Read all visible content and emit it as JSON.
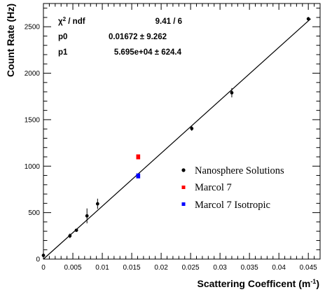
{
  "chart_data": {
    "type": "scatter",
    "xlabel": "Scattering Coefficent (m",
    "xlabel_sup": "-1",
    "xlabel_end": ")",
    "ylabel": "Count Rate (Hz)",
    "xlim": [
      0,
      0.047
    ],
    "ylim": [
      0,
      2750
    ],
    "x_ticks": [
      0,
      0.005,
      0.01,
      0.015,
      0.02,
      0.025,
      0.03,
      0.035,
      0.04,
      0.045
    ],
    "x_tick_labels": [
      "0",
      "0.005",
      "0.01",
      "0.015",
      "0.02",
      "0.025",
      "0.03",
      "0.035",
      "0.04",
      "0.045"
    ],
    "y_ticks": [
      0,
      500,
      1000,
      1500,
      2000,
      2500
    ],
    "y_tick_labels": [
      "0",
      "500",
      "1000",
      "1500",
      "2000",
      "2500"
    ],
    "grid": false,
    "legend_position": "right-middle",
    "series": [
      {
        "name": "Nanosphere Solutions",
        "color": "#000000",
        "marker": "circle",
        "points": [
          {
            "x": 0.0,
            "y": 40,
            "yerr": 20
          },
          {
            "x": 0.0045,
            "y": 250,
            "yerr": 25
          },
          {
            "x": 0.0056,
            "y": 310,
            "yerr": 15
          },
          {
            "x": 0.0074,
            "y": 465,
            "yerr": 80
          },
          {
            "x": 0.0092,
            "y": 595,
            "yerr": 55
          },
          {
            "x": 0.0252,
            "y": 1405,
            "yerr": 25
          },
          {
            "x": 0.032,
            "y": 1790,
            "yerr": 50
          },
          {
            "x": 0.045,
            "y": 2585,
            "yerr": 20
          }
        ]
      },
      {
        "name": "Marcol 7",
        "color": "#ff0000",
        "marker": "square",
        "points": [
          {
            "x": 0.0161,
            "y": 1100,
            "yerr": 25
          }
        ]
      },
      {
        "name": "Marcol 7 Isotropic",
        "color": "#0000ff",
        "marker": "square",
        "points": [
          {
            "x": 0.0161,
            "y": 895,
            "yerr": 20
          }
        ]
      }
    ],
    "fit_line": {
      "p0": 0.01672,
      "p1": 56950,
      "color": "#000000",
      "x_range": [
        0,
        0.0454
      ]
    },
    "stats": [
      {
        "label": "χ² / ndf",
        "value": "9.41 / 6"
      },
      {
        "label": "p0",
        "value": "0.01672 ± 9.262"
      },
      {
        "label": "p1",
        "value": "5.695e+04 ± 624.4"
      }
    ]
  }
}
